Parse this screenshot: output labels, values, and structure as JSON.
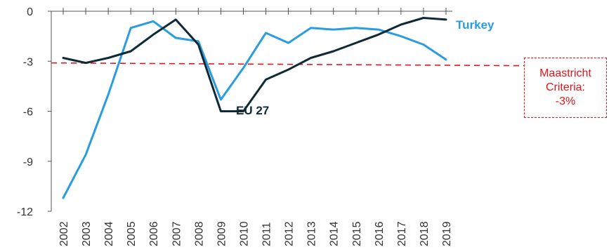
{
  "chart_data": {
    "type": "line",
    "x": [
      "2002",
      "2003",
      "2004",
      "2005",
      "2006",
      "2007",
      "2008",
      "2009",
      "2010",
      "2011",
      "2012",
      "2013",
      "2014",
      "2015",
      "2016",
      "2017",
      "2018",
      "2019"
    ],
    "series": [
      {
        "name": "Turkey",
        "color": "#2a9de0",
        "values": [
          -11.2,
          -8.6,
          -5.0,
          -1.0,
          -0.6,
          -1.6,
          -1.8,
          -5.3,
          -3.4,
          -1.3,
          -1.9,
          -1.0,
          -1.1,
          -1.0,
          -1.1,
          -1.5,
          -2.0,
          -2.9
        ]
      },
      {
        "name": "EU 27",
        "color": "#0f2a36",
        "values": [
          -2.8,
          -3.1,
          -2.8,
          -2.4,
          -1.4,
          -0.5,
          -2.0,
          -6.0,
          -6.0,
          -4.1,
          -3.5,
          -2.8,
          -2.4,
          -1.9,
          -1.4,
          -0.8,
          -0.4,
          -0.5
        ]
      }
    ],
    "yticks": [
      "0",
      "-3",
      "-6",
      "-9",
      "-12"
    ],
    "ylim": [
      -12,
      0
    ],
    "reference_line": {
      "value": -3.1,
      "color": "#e3151a",
      "style": "dashed"
    },
    "annotation": {
      "lines": [
        "Maastricht",
        "Criteria:",
        "-3%"
      ],
      "color": "#e3151a"
    },
    "grid": false
  }
}
